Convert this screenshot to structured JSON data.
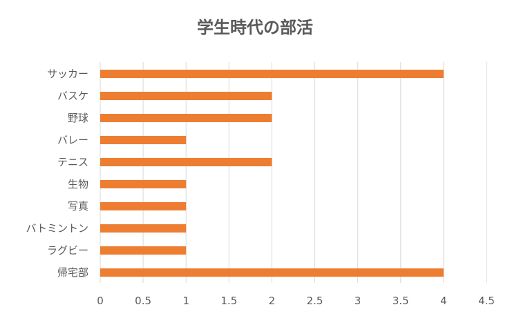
{
  "chart_data": {
    "type": "bar",
    "orientation": "horizontal",
    "title": "学生時代の部活",
    "xlabel": "",
    "ylabel": "",
    "categories": [
      "サッカー",
      "バスケ",
      "野球",
      "バレー",
      "テニス",
      "生物",
      "写真",
      "バトミントン",
      "ラグビー",
      "帰宅部"
    ],
    "values": [
      4,
      2,
      2,
      1,
      2,
      1,
      1,
      1,
      1,
      4
    ],
    "xlim": [
      0,
      4.5
    ],
    "xticks": [
      "0",
      "0.5",
      "1",
      "1.5",
      "2",
      "2.5",
      "3",
      "3.5",
      "4",
      "4.5"
    ],
    "grid": true,
    "legend": "none",
    "bar_color": "#ED7D31",
    "grid_color": "#D9D9D9",
    "text_color": "#595959"
  }
}
